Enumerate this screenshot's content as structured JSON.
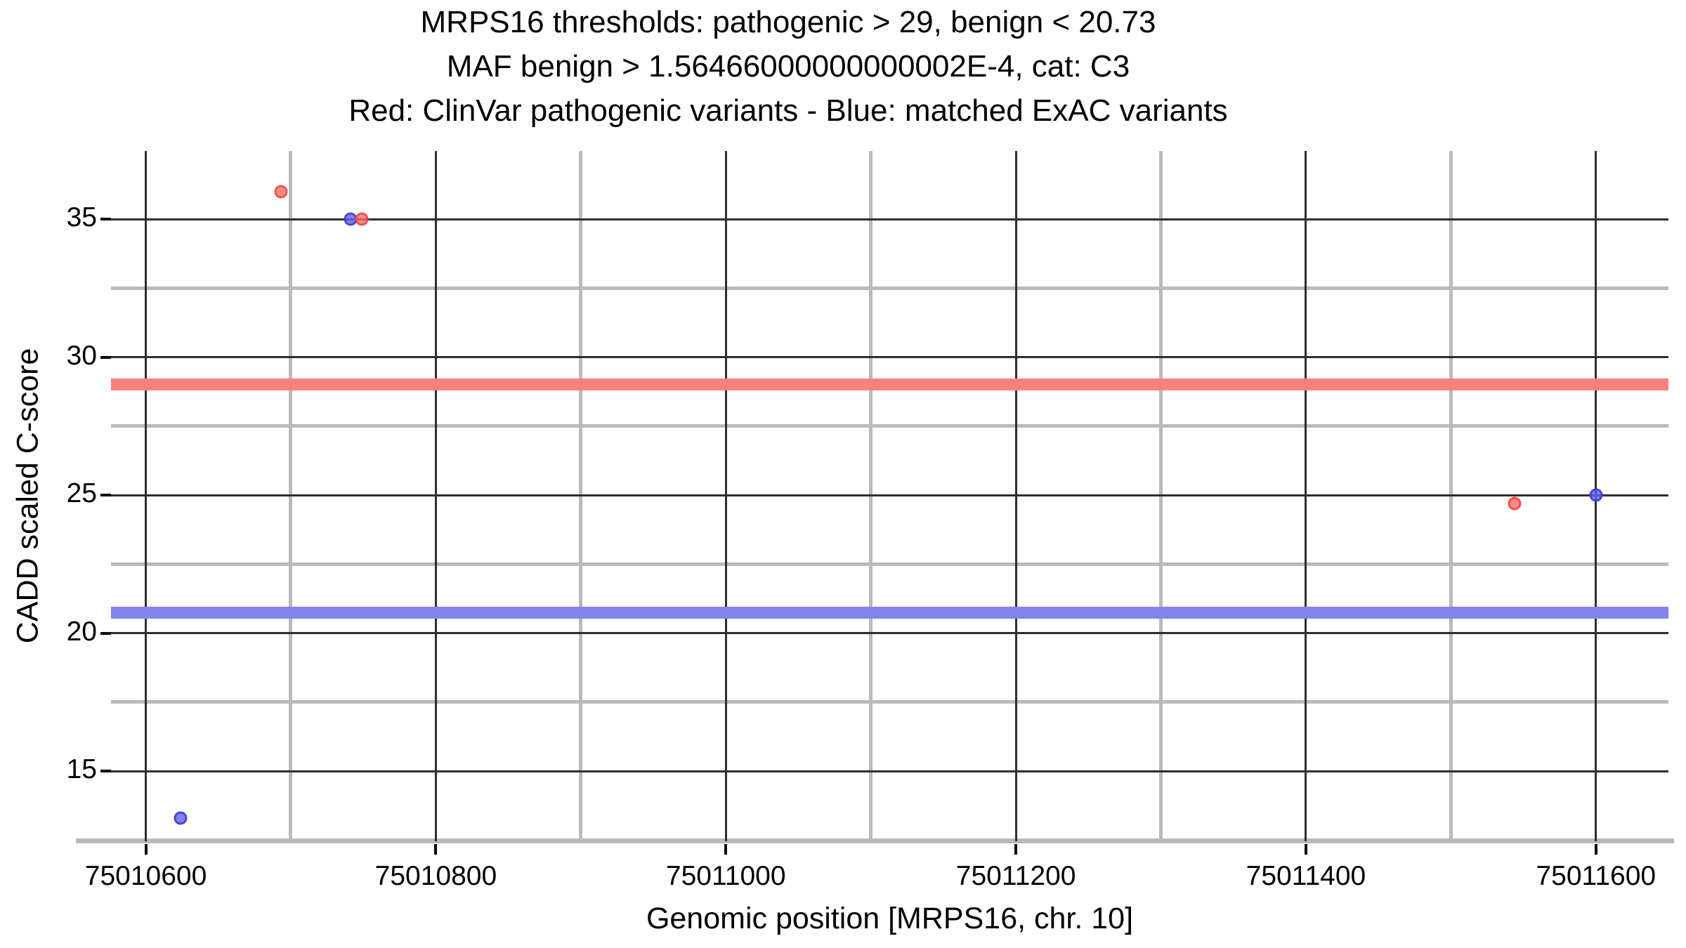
{
  "title": {
    "lines": [
      "MRPS16 thresholds: pathogenic > 29, benign < 20.73",
      "MAF benign > 1.56466000000000002E-4, cat: C3",
      "Red: ClinVar pathogenic variants - Blue: matched ExAC variants"
    ]
  },
  "chart_data": {
    "type": "scatter",
    "title": "MRPS16 thresholds: pathogenic > 29, benign < 20.73",
    "subtitle": "MAF benign > 1.56466000000000002E-4, cat: C3",
    "legend_note": "Red: ClinVar pathogenic variants - Blue: matched ExAC variants",
    "xlabel": "Genomic position [MRPS16, chr. 10]",
    "ylabel": "CADD scaled C-score",
    "gene": "MRPS16",
    "chromosome": "10",
    "category": "C3",
    "xlim": [
      75010576,
      75011650
    ],
    "ylim": [
      12.46,
      37.47
    ],
    "x_ticks": [
      75010600,
      75010800,
      75011000,
      75011200,
      75011400,
      75011600
    ],
    "x_minor_ticks": [
      75010700,
      75010900,
      75011100,
      75011300,
      75011500
    ],
    "y_ticks": [
      15,
      20,
      25,
      30,
      35
    ],
    "y_minor_ticks": [
      17.5,
      22.5,
      27.5,
      32.5
    ],
    "grid": true,
    "legend_position": "in-title",
    "thresholds": [
      {
        "name": "pathogenic",
        "rule": "pathogenic > 29",
        "value": 29,
        "color": "#f88080"
      },
      {
        "name": "benign",
        "rule": "benign < 20.73",
        "value": 20.73,
        "color": "#8383ef"
      }
    ],
    "series": [
      {
        "name": "matched ExAC variants",
        "color_class": "pt-blue",
        "color": "#6363e8",
        "points": [
          [
            75010624,
            13.3
          ],
          [
            75010741,
            35
          ],
          [
            75011600,
            25
          ]
        ]
      },
      {
        "name": "ClinVar pathogenic variants",
        "color_class": "pt-red",
        "color": "#f76c67",
        "points": [
          [
            75010693,
            36
          ],
          [
            75010749,
            35
          ],
          [
            75011544,
            24.7
          ]
        ]
      }
    ]
  }
}
